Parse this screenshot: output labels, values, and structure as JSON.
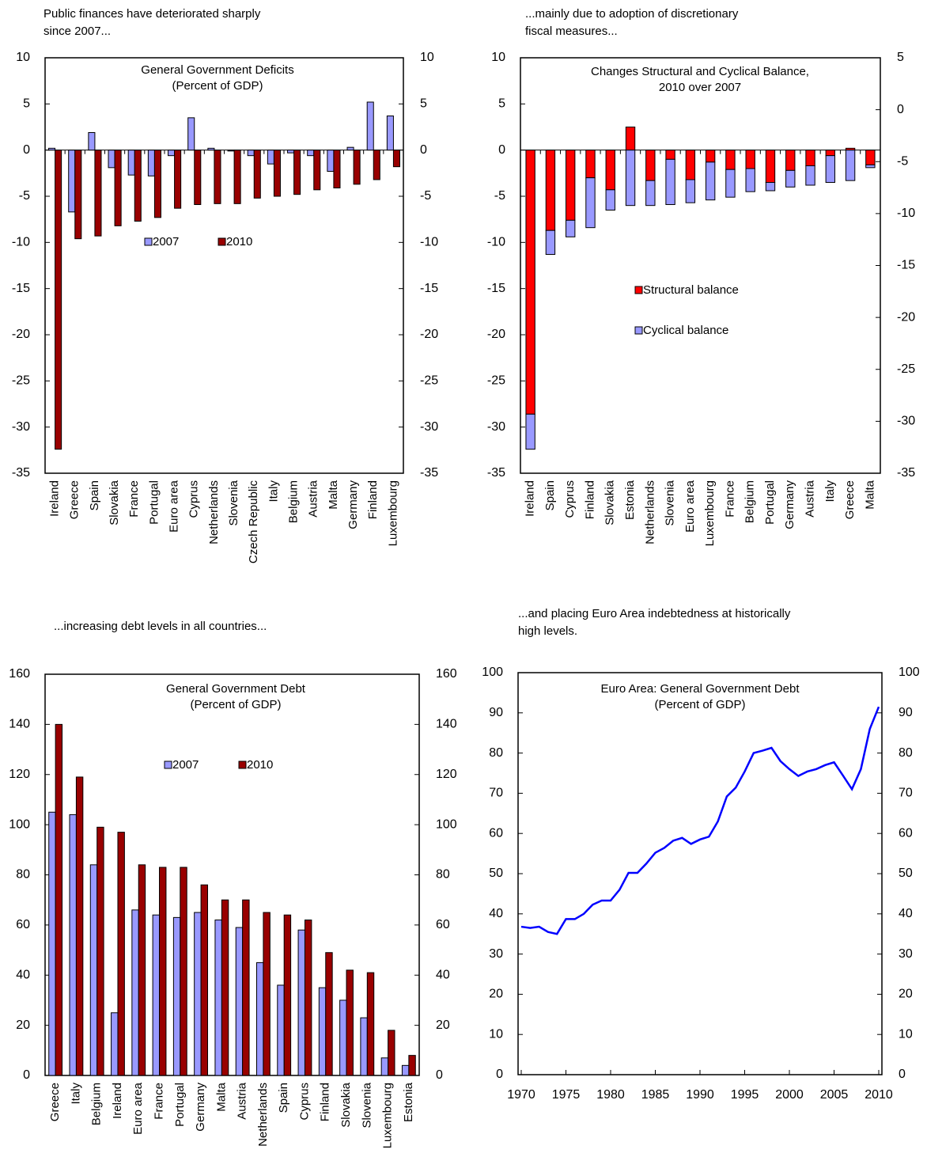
{
  "chart_data": [
    {
      "type": "bar",
      "caption": [
        "Public finances have deteriorated sharply",
        "since 2007..."
      ],
      "title": "General Government Deficits",
      "subtitle": "(Percent of GDP)",
      "categories": [
        "Ireland",
        "Greece",
        "Spain",
        "Slovakia",
        "France",
        "Portugal",
        "Euro area",
        "Cyprus",
        "Netherlands",
        "Slovenia",
        "Czech Republic",
        "Italy",
        "Belgium",
        "Austria",
        "Malta",
        "Germany",
        "Finland",
        "Luxembourg"
      ],
      "series": [
        {
          "name": "2007",
          "color": "#9999ff",
          "values": [
            0.2,
            -6.7,
            1.9,
            -1.9,
            -2.7,
            -2.8,
            -0.6,
            3.5,
            0.2,
            -0.1,
            -0.6,
            -1.5,
            -0.3,
            -0.6,
            -2.3,
            0.3,
            5.2,
            3.7
          ]
        },
        {
          "name": "2010",
          "color": "#990000",
          "values": [
            -32.4,
            -9.6,
            -9.3,
            -8.2,
            -7.7,
            -7.3,
            -6.3,
            -5.9,
            -5.8,
            -5.8,
            -5.2,
            -5.0,
            -4.8,
            -4.3,
            -4.1,
            -3.7,
            -3.2,
            -1.8
          ]
        }
      ],
      "ylim": [
        -35,
        10
      ],
      "yticks": [
        10,
        5,
        0,
        -5,
        -10,
        -15,
        -20,
        -25,
        -30,
        -35
      ],
      "y2lim": [
        -35,
        10
      ],
      "y2ticks": [
        10,
        5,
        0,
        -5,
        -10,
        -15,
        -20,
        -25,
        -30,
        -35
      ]
    },
    {
      "type": "stacked_bar",
      "caption": [
        "...mainly due to adoption of discretionary",
        "fiscal measures..."
      ],
      "title": "Changes Structural and Cyclical Balance,",
      "subtitle": "2010 over 2007",
      "categories": [
        "Ireland",
        "Spain",
        "Cyprus",
        "Finland",
        "Slovakia",
        "Estonia",
        "Netherlands",
        "Slovenia",
        "Euro area",
        "Luxembourg",
        "France",
        "Belgium",
        "Portugal",
        "Germany",
        "Austria",
        "Italy",
        "Greece",
        "Malta"
      ],
      "series": [
        {
          "name": "Structural balance",
          "color": "#ff0000",
          "values": [
            -28.6,
            -8.7,
            -7.6,
            -3.0,
            -4.3,
            2.5,
            -3.3,
            -1.0,
            -3.2,
            -1.3,
            -2.1,
            -2.0,
            -3.5,
            -2.2,
            -1.7,
            -0.6,
            0.2,
            -1.6
          ]
        },
        {
          "name": "Cyclical balance",
          "color": "#9999ff",
          "values": [
            -3.8,
            -2.6,
            -1.8,
            -5.4,
            -2.2,
            -6.0,
            -2.7,
            -4.9,
            -2.5,
            -4.1,
            -3.0,
            -2.5,
            -0.9,
            -1.8,
            -2.1,
            -2.9,
            -3.3,
            -0.3
          ]
        }
      ],
      "ylim": [
        -35,
        10
      ],
      "yticks": [
        10,
        5,
        0,
        -5,
        -10,
        -15,
        -20,
        -25,
        -30,
        -35
      ],
      "y2lim": [
        -35,
        5
      ],
      "y2ticks": [
        5,
        0,
        -5,
        -10,
        -15,
        -20,
        -25,
        -30,
        -35
      ]
    },
    {
      "type": "bar",
      "caption": [
        "...increasing debt levels in all countries..."
      ],
      "title": "General Government Debt",
      "subtitle": "(Percent of GDP)",
      "categories": [
        "Greece",
        "Italy",
        "Belgium",
        "Ireland",
        "Euro area",
        "France",
        "Portugal",
        "Germany",
        "Malta",
        "Austria",
        "Netherlands",
        "Spain",
        "Cyprus",
        "Finland",
        "Slovakia",
        "Slovenia",
        "Luxembourg",
        "Estonia"
      ],
      "series": [
        {
          "name": "2007",
          "color": "#9999ff",
          "values": [
            105,
            104,
            84,
            25,
            66,
            64,
            63,
            65,
            62,
            59,
            45,
            36,
            58,
            35,
            30,
            23,
            7,
            4
          ]
        },
        {
          "name": "2010",
          "color": "#990000",
          "values": [
            140,
            119,
            99,
            97,
            84,
            83,
            83,
            76,
            70,
            70,
            65,
            64,
            62,
            49,
            42,
            41,
            18,
            8
          ]
        }
      ],
      "ylim": [
        0,
        160
      ],
      "yticks": [
        0,
        20,
        40,
        60,
        80,
        100,
        120,
        140,
        160
      ],
      "y2lim": [
        0,
        160
      ],
      "y2ticks": [
        0,
        20,
        40,
        60,
        80,
        100,
        120,
        140,
        160
      ]
    },
    {
      "type": "line",
      "caption": [
        "...and placing Euro Area indebtedness at historically",
        "high levels."
      ],
      "title": "Euro Area: General Government Debt",
      "subtitle": "(Percent of GDP)",
      "x": [
        1970,
        1971,
        1972,
        1973,
        1974,
        1975,
        1976,
        1977,
        1978,
        1979,
        1980,
        1981,
        1982,
        1983,
        1984,
        1985,
        1986,
        1987,
        1988,
        1989,
        1990,
        1991,
        1992,
        1993,
        1994,
        1995,
        1996,
        1997,
        1998,
        1999,
        2000,
        2001,
        2002,
        2003,
        2004,
        2005,
        2006,
        2007,
        2008,
        2009,
        2010
      ],
      "series": [
        {
          "color": "#0000ff",
          "values": [
            36.8,
            36.5,
            36.8,
            35.5,
            35.0,
            38.7,
            38.7,
            40.0,
            42.3,
            43.3,
            43.3,
            46.0,
            50.2,
            50.2,
            52.5,
            55.2,
            56.4,
            58.2,
            58.9,
            57.4,
            58.5,
            59.2,
            63.0,
            69.2,
            71.4,
            75.4,
            80.0,
            80.6,
            81.3,
            78.0,
            76.0,
            74.3,
            75.4,
            76.0,
            77.0,
            77.7,
            74.4,
            71.0,
            76.0,
            86.0,
            91.5
          ]
        }
      ],
      "xlim": [
        1970,
        2010
      ],
      "xticks": [
        1970,
        1975,
        1980,
        1985,
        1990,
        1995,
        2000,
        2005,
        2010
      ],
      "ylim": [
        0,
        100
      ],
      "yticks": [
        0,
        10,
        20,
        30,
        40,
        50,
        60,
        70,
        80,
        90,
        100
      ],
      "y2lim": [
        0,
        100
      ],
      "y2ticks": [
        0,
        10,
        20,
        30,
        40,
        50,
        60,
        70,
        80,
        90,
        100
      ]
    }
  ]
}
